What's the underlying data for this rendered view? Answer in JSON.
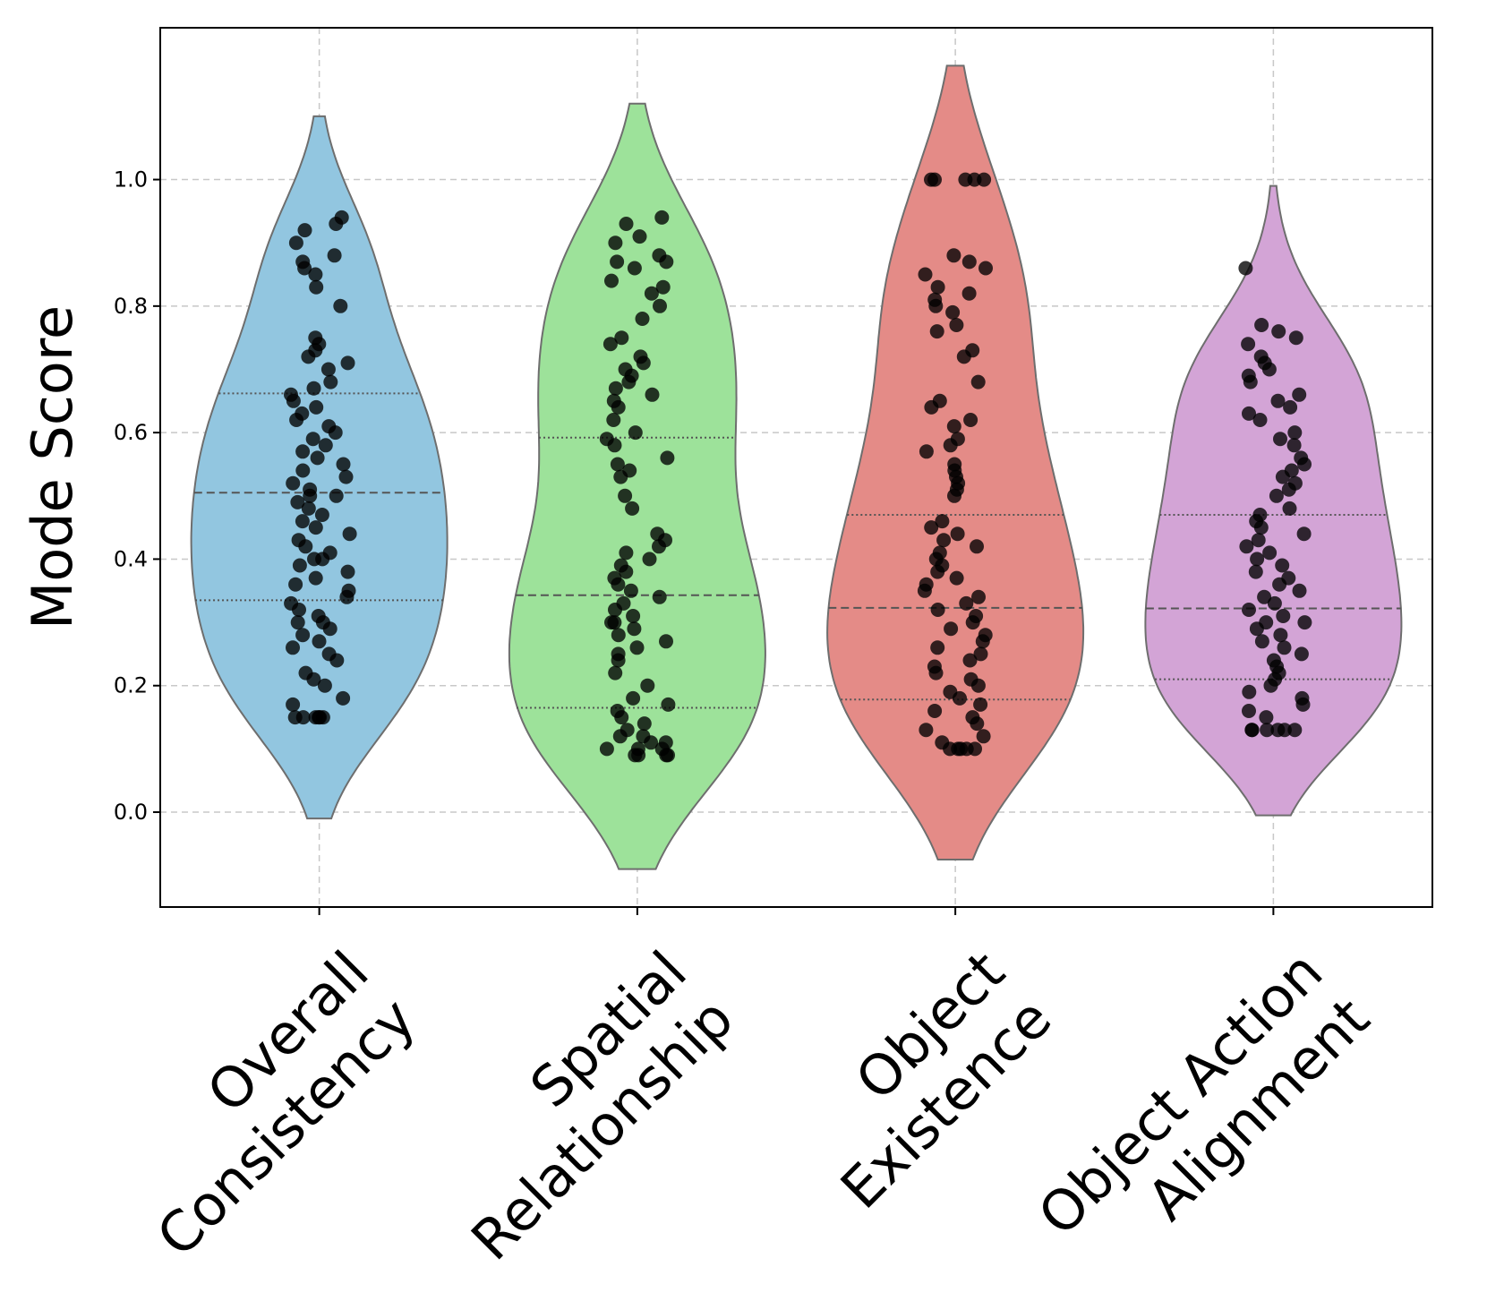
{
  "chart_data": {
    "type": "violin",
    "ylabel": "Mode Score",
    "xlabel": "",
    "ylim": [
      -0.15,
      1.24
    ],
    "yticks": [
      "0.0",
      "0.2",
      "0.4",
      "0.6",
      "0.8",
      "1.0"
    ],
    "grid": true,
    "categories": [
      {
        "label_lines": [
          "Overall",
          "Consistency"
        ],
        "color": "#92C6E0",
        "violin_range": [
          -0.01,
          1.1
        ],
        "quartiles": {
          "q1": 0.335,
          "median": 0.505,
          "q3": 0.662
        },
        "points": [
          0.15,
          0.15,
          0.15,
          0.15,
          0.15,
          0.15,
          0.17,
          0.18,
          0.2,
          0.21,
          0.22,
          0.24,
          0.25,
          0.26,
          0.27,
          0.28,
          0.29,
          0.3,
          0.3,
          0.31,
          0.32,
          0.33,
          0.34,
          0.35,
          0.36,
          0.37,
          0.38,
          0.39,
          0.4,
          0.4,
          0.41,
          0.42,
          0.43,
          0.44,
          0.45,
          0.46,
          0.47,
          0.48,
          0.49,
          0.5,
          0.5,
          0.51,
          0.52,
          0.53,
          0.54,
          0.55,
          0.56,
          0.57,
          0.58,
          0.59,
          0.6,
          0.61,
          0.62,
          0.63,
          0.64,
          0.65,
          0.66,
          0.67,
          0.68,
          0.7,
          0.71,
          0.72,
          0.73,
          0.74,
          0.75,
          0.8,
          0.83,
          0.85,
          0.86,
          0.87,
          0.88,
          0.9,
          0.92,
          0.93,
          0.94
        ]
      },
      {
        "label_lines": [
          "Spatial",
          "Relationship"
        ],
        "color": "#9DE29A",
        "violin_range": [
          -0.09,
          1.12
        ],
        "quartiles": {
          "q1": 0.165,
          "median": 0.343,
          "q3": 0.592
        },
        "points": [
          0.09,
          0.09,
          0.09,
          0.09,
          0.1,
          0.1,
          0.1,
          0.11,
          0.11,
          0.12,
          0.12,
          0.13,
          0.14,
          0.15,
          0.16,
          0.17,
          0.18,
          0.2,
          0.22,
          0.24,
          0.25,
          0.26,
          0.27,
          0.28,
          0.29,
          0.3,
          0.3,
          0.31,
          0.32,
          0.33,
          0.34,
          0.35,
          0.36,
          0.37,
          0.38,
          0.39,
          0.4,
          0.41,
          0.42,
          0.43,
          0.44,
          0.48,
          0.5,
          0.53,
          0.54,
          0.55,
          0.56,
          0.58,
          0.59,
          0.6,
          0.62,
          0.64,
          0.65,
          0.66,
          0.67,
          0.68,
          0.69,
          0.7,
          0.71,
          0.72,
          0.74,
          0.75,
          0.78,
          0.8,
          0.82,
          0.83,
          0.84,
          0.86,
          0.87,
          0.87,
          0.88,
          0.9,
          0.91,
          0.93,
          0.94
        ]
      },
      {
        "label_lines": [
          "Object",
          "Existence"
        ],
        "color": "#E48B87",
        "violin_range": [
          -0.075,
          1.18
        ],
        "quartiles": {
          "q1": 0.178,
          "median": 0.323,
          "q3": 0.47
        },
        "points": [
          0.1,
          0.1,
          0.1,
          0.1,
          0.1,
          0.11,
          0.12,
          0.13,
          0.14,
          0.15,
          0.16,
          0.17,
          0.18,
          0.19,
          0.2,
          0.21,
          0.22,
          0.23,
          0.24,
          0.25,
          0.26,
          0.27,
          0.28,
          0.29,
          0.3,
          0.31,
          0.32,
          0.33,
          0.34,
          0.35,
          0.36,
          0.37,
          0.38,
          0.39,
          0.4,
          0.41,
          0.42,
          0.43,
          0.44,
          0.45,
          0.46,
          0.5,
          0.51,
          0.52,
          0.53,
          0.54,
          0.55,
          0.57,
          0.58,
          0.59,
          0.61,
          0.62,
          0.64,
          0.65,
          0.68,
          0.72,
          0.73,
          0.76,
          0.77,
          0.79,
          0.8,
          0.81,
          0.82,
          0.83,
          0.85,
          0.86,
          0.87,
          0.88,
          1.0,
          1.0,
          1.0,
          1.0,
          1.0
        ]
      },
      {
        "label_lines": [
          "Object Action",
          "Alignment"
        ],
        "color": "#D3A4D6",
        "violin_range": [
          -0.005,
          0.99
        ],
        "quartiles": {
          "q1": 0.21,
          "median": 0.322,
          "q3": 0.47
        },
        "points": [
          0.13,
          0.13,
          0.13,
          0.13,
          0.13,
          0.13,
          0.15,
          0.16,
          0.17,
          0.18,
          0.19,
          0.2,
          0.21,
          0.22,
          0.23,
          0.24,
          0.25,
          0.26,
          0.27,
          0.28,
          0.29,
          0.3,
          0.3,
          0.31,
          0.32,
          0.33,
          0.34,
          0.35,
          0.36,
          0.37,
          0.38,
          0.39,
          0.4,
          0.41,
          0.42,
          0.43,
          0.44,
          0.45,
          0.46,
          0.47,
          0.48,
          0.5,
          0.51,
          0.52,
          0.53,
          0.54,
          0.55,
          0.56,
          0.58,
          0.59,
          0.6,
          0.62,
          0.63,
          0.64,
          0.65,
          0.66,
          0.68,
          0.69,
          0.7,
          0.71,
          0.72,
          0.74,
          0.75,
          0.76,
          0.77,
          0.86
        ]
      }
    ]
  }
}
